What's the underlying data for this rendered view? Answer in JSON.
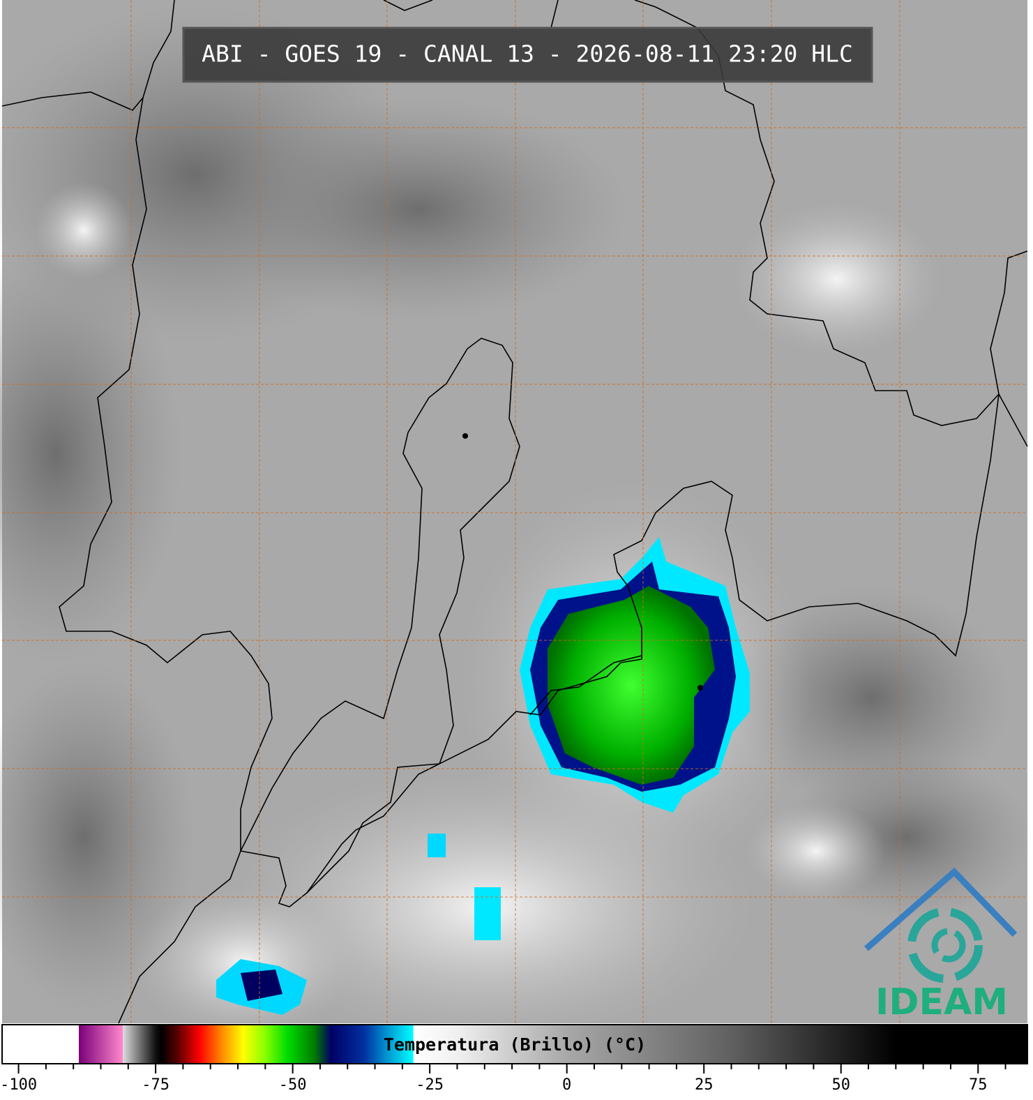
{
  "title": "ABI - GOES 19 - CANAL 13 - 2026-08-11 23:20 HLC",
  "logo": "IDEAM",
  "colorbar": {
    "label": "Temperatura (Brillo) (°C)",
    "xlim": [
      -103,
      84
    ],
    "xticks": [
      -100,
      -75,
      -50,
      -25,
      0,
      25,
      50,
      75
    ],
    "minor_xticks": [
      -95,
      -90,
      -85,
      -80,
      -70,
      -65,
      -60,
      -55,
      -45,
      -40,
      -35,
      -30,
      -20,
      -15,
      -10,
      -5,
      5,
      10,
      15,
      20,
      30,
      35,
      40,
      45,
      55,
      60,
      65,
      70,
      80
    ],
    "colormap": [
      [
        -103,
        "#ffffff"
      ],
      [
        -89,
        "#ffffff"
      ],
      [
        -89,
        "#7a007a"
      ],
      [
        -81,
        "#ff88cc"
      ],
      [
        -81,
        "#dddddd"
      ],
      [
        -75,
        "#111111"
      ],
      [
        -74,
        "#000000"
      ],
      [
        -71,
        "#5a0000"
      ],
      [
        -67,
        "#ff0000"
      ],
      [
        -63,
        "#ff8800"
      ],
      [
        -59,
        "#ffff00"
      ],
      [
        -55,
        "#88ff00"
      ],
      [
        -51,
        "#00dd00"
      ],
      [
        -46,
        "#007a00"
      ],
      [
        -43,
        "#000066"
      ],
      [
        -37,
        "#0030a0"
      ],
      [
        -33,
        "#0090d0"
      ],
      [
        -28,
        "#00ffff"
      ],
      [
        -28,
        "#ffffff"
      ],
      [
        -20,
        "#f0f0f0"
      ],
      [
        0,
        "#a8a8a8"
      ],
      [
        30,
        "#606060"
      ],
      [
        50,
        "#202020"
      ],
      [
        60,
        "#000000"
      ],
      [
        84,
        "#000000"
      ]
    ]
  }
}
